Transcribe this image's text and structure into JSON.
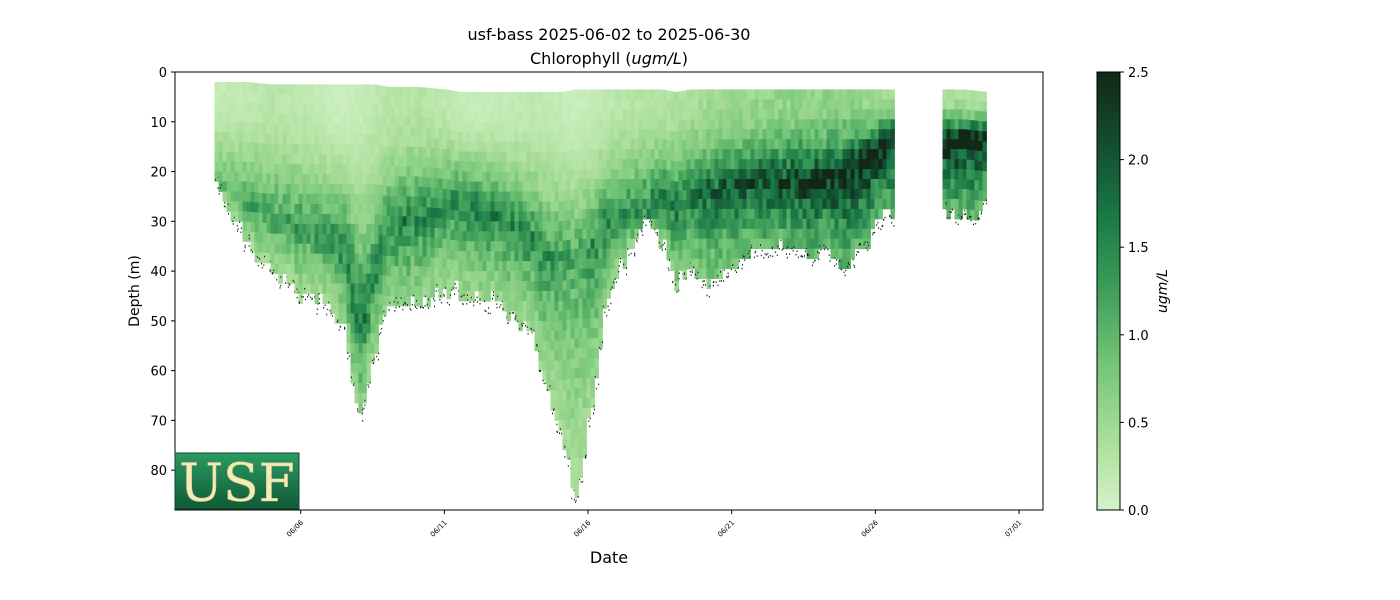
{
  "chart_data": {
    "type": "heatmap",
    "title_line1": "usf-bass 2025-06-02 to 2025-06-30",
    "title_line2": "Chlorophyll",
    "title_unit": "ugm/L",
    "xlabel": "Date",
    "ylabel": "Depth (m)",
    "colorbar_label": "ugm/L",
    "x_ticks": [
      "06/06",
      "06/11",
      "06/16",
      "06/21",
      "06/26",
      "07/01"
    ],
    "x_tick_dates": [
      "2025-06-06",
      "2025-06-11",
      "2025-06-16",
      "2025-06-21",
      "2025-06-26",
      "2025-07-01"
    ],
    "xlim": [
      "2025-06-01T15:00",
      "2025-07-01T20:00"
    ],
    "y_ticks": [
      0,
      10,
      20,
      30,
      40,
      50,
      60,
      70,
      80
    ],
    "ylim": [
      88,
      0
    ],
    "y_inverted": true,
    "colorbar_ticks": [
      0.0,
      0.5,
      1.0,
      1.5,
      2.0,
      2.5
    ],
    "colorbar_range": [
      0.0,
      2.5
    ],
    "colormap": [
      "#d4f3c8",
      "#a8dd98",
      "#74c577",
      "#3f9e5a",
      "#1a7a45",
      "#134e30",
      "#132717"
    ],
    "gap": [
      "2025-06-26T15:00",
      "2025-06-28T06:00"
    ],
    "profile": {
      "dates": [
        "2025-06-03T00:00",
        "2025-06-03T12:00",
        "2025-06-04T00:00",
        "2025-06-05T00:00",
        "2025-06-06T00:00",
        "2025-06-07T00:00",
        "2025-06-07T12:00",
        "2025-06-07T18:00",
        "2025-06-08T00:00",
        "2025-06-08T12:00",
        "2025-06-09T00:00",
        "2025-06-10T00:00",
        "2025-06-11T00:00",
        "2025-06-11T12:00",
        "2025-06-12T00:00",
        "2025-06-13T00:00",
        "2025-06-14T00:00",
        "2025-06-14T12:00",
        "2025-06-15T00:00",
        "2025-06-15T12:00",
        "2025-06-16T00:00",
        "2025-06-16T12:00",
        "2025-06-17T00:00",
        "2025-06-18T00:00",
        "2025-06-18T12:00",
        "2025-06-19T00:00",
        "2025-06-19T12:00",
        "2025-06-20T00:00",
        "2025-06-21T00:00",
        "2025-06-22T00:00",
        "2025-06-23T00:00",
        "2025-06-24T00:00",
        "2025-06-25T00:00",
        "2025-06-25T12:00",
        "2025-06-26T00:00",
        "2025-06-26T15:00",
        "2025-06-28T06:00",
        "2025-06-29T00:00",
        "2025-06-29T20:00"
      ],
      "top_depth": [
        2,
        2,
        2,
        2.5,
        2.5,
        2.5,
        2.5,
        2.5,
        2.5,
        2.5,
        3,
        3,
        3.5,
        4,
        4,
        4,
        4,
        4,
        4,
        3.5,
        3.5,
        3.5,
        3.5,
        3.5,
        3.5,
        4,
        3.5,
        3.5,
        3.5,
        3.5,
        3.5,
        3.5,
        3.5,
        3.5,
        3.5,
        3.5,
        3.5,
        3.5,
        4
      ],
      "bottom_depth": [
        21,
        27,
        33,
        40,
        44,
        46,
        52,
        61,
        69,
        56,
        46,
        45,
        43,
        43,
        44,
        46,
        52,
        62,
        72,
        85,
        69,
        48,
        39,
        28,
        33,
        42,
        38,
        42,
        37,
        34,
        34,
        35,
        38,
        34,
        29,
        27,
        27,
        28,
        26
      ],
      "peak_depth": [
        20,
        22,
        25,
        28,
        30,
        32,
        35,
        45,
        50,
        40,
        30,
        28,
        25,
        25,
        26,
        28,
        32,
        36,
        35,
        35,
        34,
        30,
        28,
        26,
        24,
        25,
        24,
        22,
        21,
        20,
        20,
        20,
        18,
        16,
        14,
        12,
        12,
        12,
        12
      ],
      "peak_value": [
        0.9,
        1.0,
        1.1,
        1.2,
        1.3,
        1.4,
        1.6,
        1.8,
        1.7,
        1.5,
        1.5,
        1.5,
        1.4,
        1.5,
        1.6,
        1.5,
        1.4,
        1.3,
        1.2,
        1.1,
        1.3,
        1.5,
        1.5,
        1.5,
        1.6,
        1.6,
        1.6,
        1.7,
        1.8,
        2.0,
        2.1,
        2.2,
        2.3,
        2.5,
        2.5,
        2.5,
        2.5,
        2.5,
        2.5
      ],
      "surface_value": [
        0.15,
        0.2,
        0.2,
        0.25,
        0.2,
        0.1,
        0.1,
        0.12,
        0.15,
        0.2,
        0.25,
        0.3,
        0.2,
        0.15,
        0.12,
        0.15,
        0.2,
        0.2,
        0.15,
        0.12,
        0.15,
        0.2,
        0.25,
        0.3,
        0.3,
        0.35,
        0.4,
        0.45,
        0.5,
        0.55,
        0.6,
        0.6,
        0.6,
        0.5,
        0.45,
        0.45,
        0.4,
        0.4,
        0.4
      ]
    },
    "logo": {
      "text": "USF",
      "bg": "#1a7d4e",
      "fg": "#f3ecb4"
    }
  }
}
